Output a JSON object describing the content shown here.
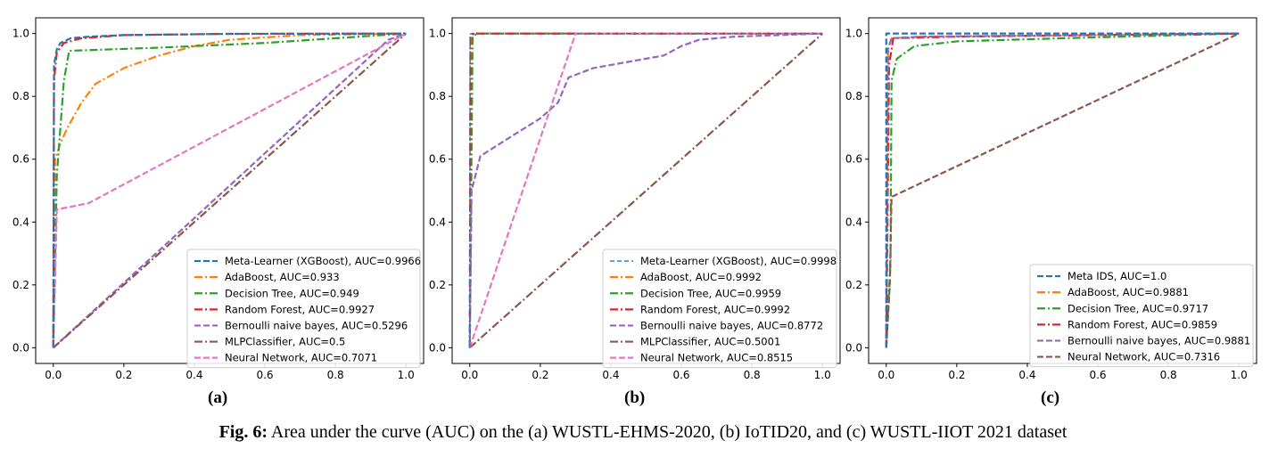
{
  "caption": {
    "label": "Fig. 6:",
    "text": "Area under the curve (AUC) on the (a) WUSTL-EHMS-2020, (b) IoTID20, and (c) WUSTL-IIOT 2021 dataset"
  },
  "chart_data": [
    {
      "type": "line",
      "panel_label": "(a)",
      "xlim": [
        -0.05,
        1.05
      ],
      "ylim": [
        -0.05,
        1.05
      ],
      "xticks": [
        "0.0",
        "0.2",
        "0.4",
        "0.6",
        "0.8",
        "1.0"
      ],
      "yticks": [
        "0.0",
        "0.2",
        "0.4",
        "0.6",
        "0.8",
        "1.0"
      ],
      "grid": false,
      "legend": "lower-right",
      "series": [
        {
          "name": "Meta-Learner (XGBoost), AUC=0.9966",
          "color": "#1f77b4",
          "dash": "dashed",
          "points": [
            [
              0,
              0
            ],
            [
              0.002,
              0.9
            ],
            [
              0.01,
              0.95
            ],
            [
              0.02,
              0.97
            ],
            [
              0.05,
              0.985
            ],
            [
              0.1,
              0.99
            ],
            [
              0.2,
              0.995
            ],
            [
              0.5,
              0.999
            ],
            [
              1,
              1
            ]
          ]
        },
        {
          "name": "AdaBoost, AUC=0.933",
          "color": "#ff7f0e",
          "dash": "dashdot",
          "points": [
            [
              0,
              0
            ],
            [
              0.005,
              0.6
            ],
            [
              0.02,
              0.65
            ],
            [
              0.04,
              0.7
            ],
            [
              0.08,
              0.78
            ],
            [
              0.12,
              0.84
            ],
            [
              0.2,
              0.89
            ],
            [
              0.3,
              0.93
            ],
            [
              0.4,
              0.96
            ],
            [
              0.5,
              0.98
            ],
            [
              0.7,
              0.995
            ],
            [
              1,
              1
            ]
          ]
        },
        {
          "name": "Decision Tree, AUC=0.949",
          "color": "#2ca02c",
          "dash": "dashdot",
          "points": [
            [
              0,
              0
            ],
            [
              0.01,
              0.55
            ],
            [
              0.03,
              0.85
            ],
            [
              0.045,
              0.945
            ],
            [
              0.3,
              0.955
            ],
            [
              0.6,
              0.97
            ],
            [
              1,
              1
            ]
          ]
        },
        {
          "name": "Random Forest, AUC=0.9927",
          "color": "#d62728",
          "dash": "dashdot",
          "points": [
            [
              0,
              0
            ],
            [
              0.002,
              0.85
            ],
            [
              0.01,
              0.94
            ],
            [
              0.03,
              0.97
            ],
            [
              0.08,
              0.985
            ],
            [
              0.2,
              0.995
            ],
            [
              0.5,
              0.999
            ],
            [
              1,
              1
            ]
          ]
        },
        {
          "name": "Bernoulli naive bayes, AUC=0.5296",
          "color": "#9467bd",
          "dash": "dashed",
          "points": [
            [
              0,
              0
            ],
            [
              0.95,
              0.98
            ],
            [
              1,
              1
            ]
          ]
        },
        {
          "name": "MLPClassifier, AUC=0.5",
          "color": "#8c564b",
          "dash": "dashdot",
          "points": [
            [
              0,
              0
            ],
            [
              1,
              1
            ]
          ]
        },
        {
          "name": "Neural Network, AUC=0.7071",
          "color": "#e377c2",
          "dash": "dashed",
          "points": [
            [
              0,
              0
            ],
            [
              0.01,
              0.44
            ],
            [
              0.1,
              0.46
            ],
            [
              1,
              1
            ]
          ]
        }
      ]
    },
    {
      "type": "line",
      "panel_label": "(b)",
      "xlim": [
        -0.05,
        1.05
      ],
      "ylim": [
        -0.05,
        1.05
      ],
      "xticks": [
        "0.0",
        "0.2",
        "0.4",
        "0.6",
        "0.8",
        "1.0"
      ],
      "yticks": [
        "0.0",
        "0.2",
        "0.4",
        "0.6",
        "0.8",
        "1.0"
      ],
      "grid": false,
      "legend": "lower-right",
      "series": [
        {
          "name": "Meta-Learner (XGBoost), AUC=0.9998",
          "color": "#1f77b4",
          "dash": "dashed-thin",
          "points": [
            [
              0,
              0
            ],
            [
              0.001,
              0.998
            ],
            [
              0.005,
              1
            ],
            [
              1,
              1
            ]
          ]
        },
        {
          "name": "AdaBoost, AUC=0.9992",
          "color": "#ff7f0e",
          "dash": "dashdot",
          "points": [
            [
              0,
              0
            ],
            [
              0.002,
              0.99
            ],
            [
              0.01,
              1
            ],
            [
              1,
              1
            ]
          ]
        },
        {
          "name": "Decision Tree, AUC=0.9959",
          "color": "#2ca02c",
          "dash": "dashdot",
          "points": [
            [
              0,
              0
            ],
            [
              0.008,
              0.99
            ],
            [
              0.02,
              1
            ],
            [
              1,
              1
            ]
          ]
        },
        {
          "name": "Random Forest, AUC=0.9992",
          "color": "#d62728",
          "dash": "dashdot",
          "points": [
            [
              0,
              0
            ],
            [
              0.002,
              0.99
            ],
            [
              0.01,
              1
            ],
            [
              1,
              1
            ]
          ]
        },
        {
          "name": "Bernoulli naive bayes, AUC=0.8772",
          "color": "#9467bd",
          "dash": "dashed",
          "points": [
            [
              0,
              0
            ],
            [
              0.005,
              0.5
            ],
            [
              0.03,
              0.61
            ],
            [
              0.1,
              0.66
            ],
            [
              0.2,
              0.73
            ],
            [
              0.25,
              0.78
            ],
            [
              0.28,
              0.86
            ],
            [
              0.35,
              0.89
            ],
            [
              0.45,
              0.91
            ],
            [
              0.55,
              0.93
            ],
            [
              0.6,
              0.96
            ],
            [
              0.65,
              0.98
            ],
            [
              0.75,
              0.99
            ],
            [
              1,
              1
            ]
          ]
        },
        {
          "name": "MLPClassifier, AUC=0.5001",
          "color": "#8c564b",
          "dash": "dashdot",
          "points": [
            [
              0,
              0
            ],
            [
              1,
              1
            ]
          ]
        },
        {
          "name": "Neural Network, AUC=0.8515",
          "color": "#e377c2",
          "dash": "dashed",
          "points": [
            [
              0,
              0
            ],
            [
              0.3,
              1
            ],
            [
              1,
              1
            ]
          ]
        }
      ]
    },
    {
      "type": "line",
      "panel_label": "(c)",
      "xlim": [
        -0.05,
        1.05
      ],
      "ylim": [
        -0.05,
        1.05
      ],
      "xticks": [
        "0.0",
        "0.2",
        "0.4",
        "0.6",
        "0.8",
        "1.0"
      ],
      "yticks": [
        "0.0",
        "0.2",
        "0.4",
        "0.6",
        "0.8",
        "1.0"
      ],
      "grid": false,
      "legend": "lower-right",
      "series": [
        {
          "name": "Meta IDS, AUC=1.0",
          "color": "#1f77b4",
          "dash": "dashed",
          "points": [
            [
              0,
              0
            ],
            [
              0,
              1
            ],
            [
              1,
              1
            ]
          ]
        },
        {
          "name": "AdaBoost, AUC=0.9881",
          "color": "#ff7f0e",
          "dash": "dashdot",
          "points": [
            [
              0,
              0
            ],
            [
              0.005,
              0.95
            ],
            [
              0.015,
              0.985
            ],
            [
              0.1,
              0.99
            ],
            [
              1,
              1
            ]
          ]
        },
        {
          "name": "Decision Tree, AUC=0.9717",
          "color": "#2ca02c",
          "dash": "dashdot",
          "points": [
            [
              0,
              0
            ],
            [
              0.012,
              0.27
            ],
            [
              0.015,
              0.85
            ],
            [
              0.03,
              0.92
            ],
            [
              0.08,
              0.96
            ],
            [
              0.2,
              0.975
            ],
            [
              0.5,
              0.985
            ],
            [
              1,
              1
            ]
          ]
        },
        {
          "name": "Random Forest, AUC=0.9859",
          "color": "#d62728",
          "dash": "dashdot",
          "points": [
            [
              0,
              0
            ],
            [
              0.008,
              0.9
            ],
            [
              0.02,
              0.985
            ],
            [
              0.2,
              0.99
            ],
            [
              1,
              1
            ]
          ]
        },
        {
          "name": "Bernoulli naive bayes, AUC=0.9881",
          "color": "#9467bd",
          "dash": "dashed",
          "points": [
            [
              0,
              0
            ],
            [
              0.005,
              0.95
            ],
            [
              0.015,
              0.985
            ],
            [
              0.1,
              0.99
            ],
            [
              1,
              1
            ]
          ]
        },
        {
          "name": "Neural Network, AUC=0.7316",
          "color": "#8c564b",
          "dash": "dashed",
          "points": [
            [
              0,
              0
            ],
            [
              0.01,
              0.2
            ],
            [
              0.015,
              0.48
            ],
            [
              1,
              1
            ]
          ]
        }
      ]
    }
  ]
}
